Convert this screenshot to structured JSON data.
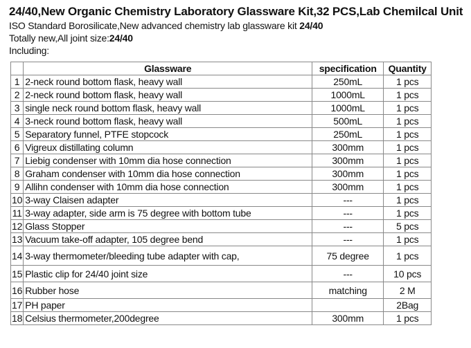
{
  "title": "24/40,New Organic Chemistry Laboratory Glassware Kit,32 PCS,Lab Chemilcal Unit",
  "line1": {
    "text": "ISO Standard Borosilicate,New advanced chemistry lab glassware kit ",
    "bold": "24/40"
  },
  "line2": {
    "text": "Totally new,All joint size:",
    "bold": "24/40"
  },
  "line3": "Including:",
  "table": {
    "headers": [
      "",
      "Glassware",
      "specification",
      "Quantity"
    ],
    "rows": [
      {
        "no": "1",
        "item": "2-neck round bottom flask, heavy wall",
        "spec": "250mL",
        "qty": "1 pcs"
      },
      {
        "no": "2",
        "item": "2-neck round bottom flask, heavy wall",
        "spec": "1000mL",
        "qty": "1 pcs"
      },
      {
        "no": "3",
        "item": "single neck round bottom flask, heavy wall",
        "spec": "1000mL",
        "qty": "1 pcs"
      },
      {
        "no": "4",
        "item": "3-neck round bottom flask, heavy wall",
        "spec": "500mL",
        "qty": "1 pcs"
      },
      {
        "no": "5",
        "item": "Separatory funnel, PTFE stopcock",
        "spec": "250mL",
        "qty": "1 pcs"
      },
      {
        "no": "6",
        "item": "Vigreux distillating column",
        "spec": "300mm",
        "qty": "1 pcs"
      },
      {
        "no": "7",
        "item": "Liebig condenser with 10mm dia hose connection",
        "spec": "300mm",
        "qty": "1 pcs"
      },
      {
        "no": "8",
        "item": "Graham condenser with 10mm dia hose connection",
        "spec": "300mm",
        "qty": "1 pcs"
      },
      {
        "no": "9",
        "item": "Allihn condenser with 10mm dia hose connection",
        "spec": "300mm",
        "qty": "1 pcs"
      },
      {
        "no": "10",
        "item": "3-way Claisen adapter",
        "spec": "---",
        "qty": "1 pcs"
      },
      {
        "no": "11",
        "item": "3-way adapter, side arm is 75 degree with bottom tube",
        "spec": "---",
        "qty": "1 pcs"
      },
      {
        "no": "12",
        "item": "Glass Stopper",
        "spec": "---",
        "qty": "5 pcs"
      },
      {
        "no": "13",
        "item": "Vacuum take-off adapter, 105 degree bend",
        "spec": "---",
        "qty": "1 pcs"
      },
      {
        "no": "14",
        "item": "3-way thermometer/bleeding tube adapter with cap,",
        "spec": "75 degree",
        "qty": "1 pcs"
      },
      {
        "no": "15",
        "item": "Plastic clip for 24/40 joint size",
        "spec": "---",
        "qty": "10 pcs"
      },
      {
        "no": "16",
        "item": "Rubber hose",
        "spec": "matching",
        "qty": "2 M"
      },
      {
        "no": "17",
        "item": "PH paper",
        "spec": "",
        "qty": "2Bag"
      },
      {
        "no": "18",
        "item": "Celsius thermometer,200degree",
        "spec": "300mm",
        "qty": "1 pcs"
      }
    ]
  }
}
